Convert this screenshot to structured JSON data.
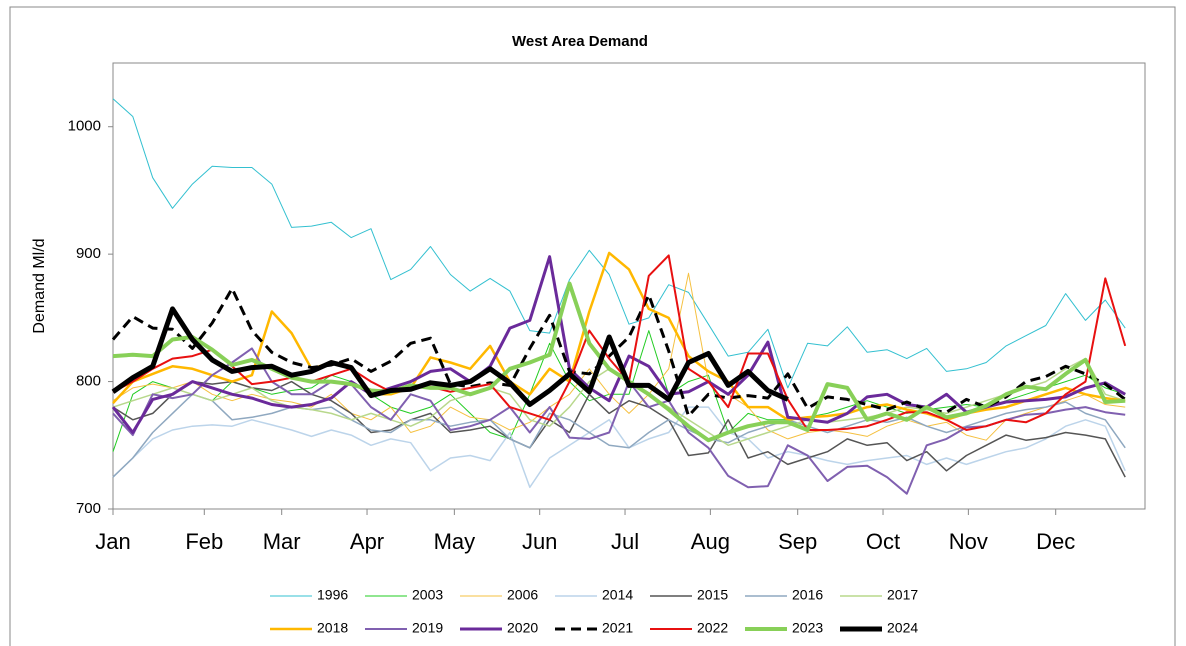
{
  "chart_data": {
    "type": "line",
    "title": "West Area Demand",
    "y_label": "Demand Ml/d",
    "x": [
      0,
      1,
      2,
      3,
      4,
      5,
      6,
      7,
      8,
      9,
      10,
      11,
      12,
      13,
      14,
      15,
      16,
      17,
      18,
      19,
      20,
      21,
      22,
      23,
      24,
      25,
      26,
      27,
      28,
      29,
      30,
      31,
      32,
      33,
      34,
      35,
      36,
      37,
      38,
      39,
      40,
      41,
      42,
      43,
      44,
      45,
      46,
      47,
      48,
      49,
      50,
      51
    ],
    "xlim": [
      0,
      52
    ],
    "xticks": [
      {
        "value": 0,
        "label": "Jan"
      },
      {
        "value": 4.6,
        "label": "Feb"
      },
      {
        "value": 8.5,
        "label": "Mar"
      },
      {
        "value": 12.8,
        "label": "Apr"
      },
      {
        "value": 17.2,
        "label": "May"
      },
      {
        "value": 21.5,
        "label": "Jun"
      },
      {
        "value": 25.8,
        "label": "Jul"
      },
      {
        "value": 30.1,
        "label": "Aug"
      },
      {
        "value": 34.5,
        "label": "Sep"
      },
      {
        "value": 38.8,
        "label": "Oct"
      },
      {
        "value": 43.1,
        "label": "Nov"
      },
      {
        "value": 47.5,
        "label": "Dec"
      }
    ],
    "ylim": [
      700,
      1050
    ],
    "yticks": [
      700,
      800,
      900,
      1000
    ],
    "grid": false,
    "legend": "bottom",
    "series": [
      {
        "name": "1996",
        "color": "#33c0d0",
        "width": 1,
        "dash": false,
        "values": [
          1022,
          1008,
          960,
          936,
          955,
          969,
          968,
          968,
          955,
          921,
          922,
          925,
          913,
          920,
          880,
          888,
          906,
          884,
          871,
          881,
          871,
          840,
          838,
          880,
          903,
          884,
          845,
          850,
          876,
          870,
          845,
          820,
          823,
          841,
          795,
          830,
          828,
          843,
          823,
          825,
          818,
          826,
          808,
          810,
          815,
          828,
          836,
          844,
          869,
          848,
          864,
          842
        ]
      },
      {
        "name": "2003",
        "color": "#22cc22",
        "width": 1,
        "dash": false,
        "values": [
          745,
          790,
          800,
          795,
          790,
          785,
          800,
          795,
          790,
          793,
          795,
          805,
          800,
          790,
          780,
          775,
          780,
          790,
          775,
          760,
          755,
          790,
          830,
          800,
          785,
          790,
          790,
          840,
          790,
          800,
          805,
          760,
          775,
          770,
          770,
          772,
          775,
          780,
          785,
          780,
          775,
          778,
          780,
          782,
          780,
          785,
          790,
          795,
          800,
          805,
          795,
          790
        ]
      },
      {
        "name": "2006",
        "color": "#f5c040",
        "width": 1,
        "dash": false,
        "values": [
          785,
          795,
          798,
          795,
          800,
          790,
          785,
          790,
          786,
          784,
          780,
          790,
          775,
          770,
          780,
          760,
          765,
          780,
          772,
          770,
          762,
          768,
          780,
          790,
          810,
          790,
          775,
          790,
          810,
          885,
          800,
          790,
          780,
          762,
          755,
          760,
          762,
          760,
          757,
          765,
          770,
          765,
          768,
          758,
          754,
          770,
          775,
          780,
          785,
          790,
          782,
          780
        ]
      },
      {
        "name": "2014",
        "color": "#bcd4ea",
        "width": 1.5,
        "dash": false,
        "values": [
          725,
          740,
          755,
          762,
          765,
          766,
          765,
          770,
          766,
          762,
          757,
          762,
          758,
          750,
          755,
          752,
          730,
          740,
          742,
          738,
          760,
          717,
          740,
          750,
          760,
          770,
          748,
          755,
          760,
          780,
          780,
          760,
          755,
          740,
          745,
          742,
          738,
          735,
          738,
          740,
          742,
          735,
          740,
          735,
          740,
          745,
          748,
          755,
          765,
          770,
          765,
          730
        ]
      },
      {
        "name": "2015",
        "color": "#555555",
        "width": 1.5,
        "dash": false,
        "values": [
          780,
          770,
          775,
          790,
          800,
          798,
          800,
          795,
          793,
          800,
          790,
          785,
          775,
          760,
          762,
          770,
          775,
          760,
          762,
          765,
          755,
          748,
          770,
          760,
          790,
          775,
          785,
          780,
          770,
          742,
          744,
          770,
          740,
          745,
          735,
          740,
          745,
          755,
          750,
          752,
          738,
          745,
          730,
          742,
          750,
          758,
          754,
          756,
          760,
          758,
          755,
          725
        ]
      },
      {
        "name": "2016",
        "color": "#8fa8c0",
        "width": 1.5,
        "dash": false,
        "values": [
          725,
          740,
          760,
          775,
          790,
          785,
          770,
          772,
          775,
          780,
          778,
          780,
          770,
          762,
          760,
          770,
          770,
          765,
          768,
          770,
          755,
          748,
          775,
          770,
          760,
          750,
          748,
          760,
          770,
          762,
          755,
          752,
          760,
          765,
          770,
          765,
          760,
          765,
          770,
          768,
          772,
          765,
          760,
          765,
          770,
          775,
          778,
          780,
          784,
          775,
          770,
          748
        ]
      },
      {
        "name": "2017",
        "color": "#b8d88c",
        "width": 1.5,
        "dash": false,
        "values": [
          780,
          785,
          790,
          795,
          790,
          785,
          790,
          795,
          785,
          780,
          778,
          775,
          770,
          775,
          770,
          765,
          772,
          785,
          790,
          795,
          790,
          770,
          765,
          780,
          800,
          810,
          800,
          790,
          780,
          770,
          760,
          750,
          755,
          760,
          765,
          770,
          768,
          770,
          772,
          775,
          780,
          778,
          775,
          780,
          785,
          790,
          795,
          800,
          810,
          818,
          790,
          785
        ]
      },
      {
        "name": "2018",
        "color": "#ffb800",
        "width": 2.5,
        "dash": false,
        "values": [
          783,
          800,
          806,
          812,
          810,
          805,
          800,
          805,
          855,
          838,
          810,
          815,
          810,
          790,
          790,
          795,
          819,
          815,
          810,
          828,
          800,
          790,
          810,
          800,
          855,
          901,
          888,
          857,
          850,
          820,
          808,
          800,
          780,
          780,
          770,
          772,
          773,
          775,
          780,
          782,
          778,
          775,
          770,
          775,
          778,
          780,
          785,
          790,
          795,
          790,
          787,
          785
        ]
      },
      {
        "name": "2019",
        "color": "#8060b0",
        "width": 2,
        "dash": false,
        "values": [
          775,
          758,
          790,
          787,
          790,
          805,
          815,
          826,
          800,
          790,
          790,
          800,
          798,
          780,
          770,
          790,
          785,
          762,
          765,
          770,
          780,
          760,
          780,
          756,
          755,
          760,
          800,
          780,
          785,
          760,
          748,
          726,
          717,
          718,
          750,
          742,
          722,
          733,
          734,
          725,
          712,
          750,
          755,
          764,
          765,
          770,
          774,
          775,
          778,
          780,
          776,
          774
        ]
      },
      {
        "name": "2020",
        "color": "#6a2a9a",
        "width": 3,
        "dash": false,
        "values": [
          780,
          760,
          786,
          790,
          800,
          795,
          790,
          787,
          782,
          780,
          782,
          787,
          800,
          790,
          795,
          800,
          808,
          810,
          800,
          812,
          842,
          848,
          898,
          810,
          795,
          785,
          820,
          812,
          790,
          792,
          800,
          790,
          805,
          831,
          772,
          770,
          768,
          775,
          788,
          790,
          782,
          780,
          790,
          776,
          780,
          784,
          785,
          786,
          788,
          795,
          799,
          790
        ]
      },
      {
        "name": "2021",
        "color": "#000000",
        "width": 3,
        "dash": true,
        "values": [
          833,
          851,
          842,
          841,
          826,
          846,
          873,
          840,
          823,
          815,
          811,
          813,
          818,
          808,
          816,
          830,
          834,
          798,
          796,
          799,
          797,
          826,
          852,
          808,
          806,
          820,
          835,
          868,
          824,
          773,
          790,
          787,
          789,
          787,
          806,
          779,
          788,
          786,
          782,
          778,
          784,
          778,
          776,
          786,
          780,
          788,
          800,
          804,
          812,
          806,
          798,
          786
        ]
      },
      {
        "name": "2022",
        "color": "#e81010",
        "width": 2,
        "dash": false,
        "values": [
          792,
          800,
          810,
          818,
          820,
          825,
          812,
          798,
          800,
          803,
          800,
          805,
          810,
          800,
          792,
          795,
          796,
          792,
          795,
          798,
          780,
          775,
          770,
          800,
          840,
          818,
          800,
          883,
          899,
          810,
          800,
          780,
          822,
          822,
          786,
          762,
          762,
          763,
          765,
          770,
          776,
          776,
          770,
          762,
          765,
          770,
          768,
          775,
          790,
          800,
          881,
          828
        ]
      },
      {
        "name": "2023",
        "color": "#88d058",
        "width": 4,
        "dash": false,
        "values": [
          820,
          821,
          820,
          833,
          835,
          825,
          813,
          817,
          810,
          803,
          800,
          800,
          798,
          793,
          792,
          797,
          795,
          795,
          790,
          795,
          810,
          815,
          821,
          877,
          830,
          810,
          800,
          790,
          778,
          765,
          754,
          760,
          765,
          768,
          768,
          762,
          798,
          795,
          770,
          775,
          770,
          780,
          772,
          775,
          781,
          790,
          796,
          794,
          806,
          817,
          784,
          785
        ]
      },
      {
        "name": "2024",
        "color": "#000000",
        "width": 5,
        "dash": false,
        "values": [
          792,
          803,
          812,
          857,
          833,
          817,
          808,
          811,
          812,
          805,
          808,
          815,
          811,
          789,
          793,
          794,
          799,
          797,
          800,
          810,
          799,
          782,
          793,
          806,
          792,
          835,
          797,
          797,
          786,
          815,
          822,
          797,
          808,
          793,
          786,
          null,
          null,
          null,
          null,
          null,
          null,
          null,
          null,
          null,
          null,
          null,
          null,
          null,
          null,
          null,
          null,
          null
        ]
      }
    ]
  }
}
